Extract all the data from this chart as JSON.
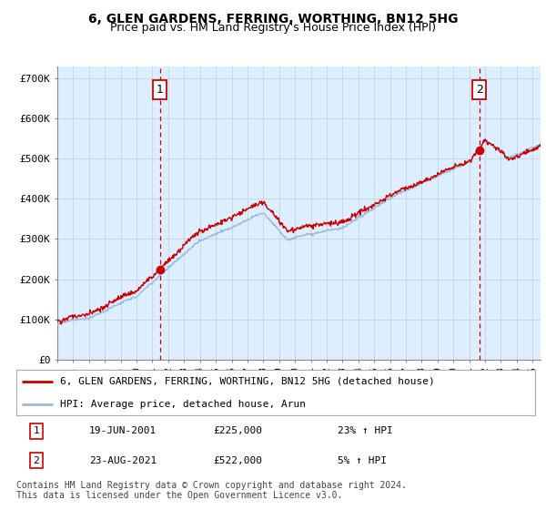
{
  "title": "6, GLEN GARDENS, FERRING, WORTHING, BN12 5HG",
  "subtitle": "Price paid vs. HM Land Registry's House Price Index (HPI)",
  "ylabel_ticks": [
    "£0",
    "£100K",
    "£200K",
    "£300K",
    "£400K",
    "£500K",
    "£600K",
    "£700K"
  ],
  "ytick_vals": [
    0,
    100000,
    200000,
    300000,
    400000,
    500000,
    600000,
    700000
  ],
  "ylim": [
    0,
    730000
  ],
  "xlim_start": 1995.0,
  "xlim_end": 2025.5,
  "sale1_date": 2001.47,
  "sale1_price": 225000,
  "sale1_label": "1",
  "sale2_date": 2021.64,
  "sale2_price": 522000,
  "sale2_label": "2",
  "property_line_color": "#cc0000",
  "hpi_line_color": "#99bbdd",
  "vline_color": "#cc0000",
  "grid_color": "#c8d8e8",
  "chart_bg_color": "#ddeeff",
  "background_color": "#ffffff",
  "legend_property": "6, GLEN GARDENS, FERRING, WORTHING, BN12 5HG (detached house)",
  "legend_hpi": "HPI: Average price, detached house, Arun",
  "table_row1": [
    "1",
    "19-JUN-2001",
    "£225,000",
    "23% ↑ HPI"
  ],
  "table_row2": [
    "2",
    "23-AUG-2021",
    "£522,000",
    "5% ↑ HPI"
  ],
  "footnote": "Contains HM Land Registry data © Crown copyright and database right 2024.\nThis data is licensed under the Open Government Licence v3.0.",
  "title_fontsize": 10,
  "subtitle_fontsize": 9,
  "tick_fontsize": 8,
  "legend_fontsize": 8,
  "table_fontsize": 8,
  "footnote_fontsize": 7
}
